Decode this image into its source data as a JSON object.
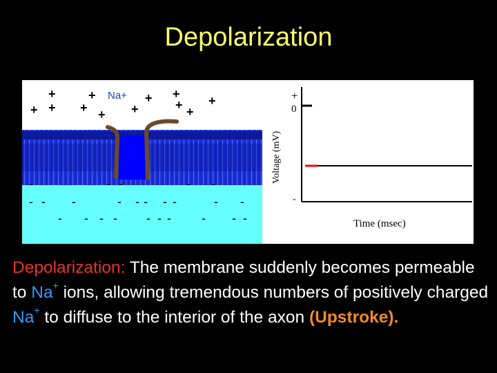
{
  "title": "Depolarization",
  "diagram": {
    "ion_label": "Na+",
    "outside_charge": "+",
    "inside_charge": "-",
    "voltage_axis_label": "Voltage (mV)",
    "time_axis_label": "Time (msec)",
    "tick_plus": "+",
    "tick_zero": "0",
    "tick_minus": "-",
    "colors": {
      "extracellular": "#ffffff",
      "intracellular": "#66ffff",
      "membrane_head": "#1c2fd6",
      "membrane_core": "#0a1599",
      "channel_gate": "#6b4a2b",
      "channel_pore": "#0000ff",
      "trace": "#ff0000"
    }
  },
  "caption": {
    "term": "Depolarization:",
    "text_1": "The membrane suddenly becomes permeable to",
    "ion_1": "Na",
    "sup_1": "+",
    "text_2": "ions, allowing tremendous numbers of positively charged",
    "ion_2": "Na",
    "sup_2": "+",
    "text_3": "to diffuse to the interior of the axon",
    "upstroke": "(Upstroke)."
  }
}
